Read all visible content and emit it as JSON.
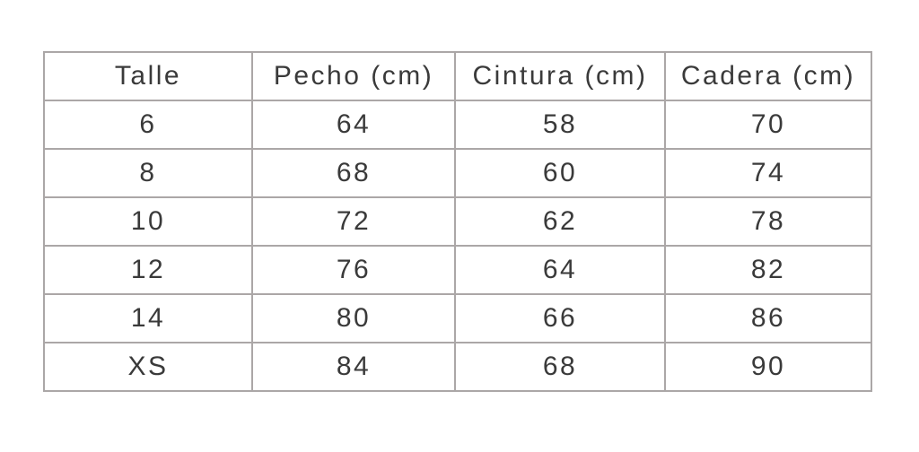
{
  "table": {
    "columns": [
      "Talle",
      "Pecho (cm)",
      "Cintura (cm)",
      "Cadera (cm)"
    ],
    "rows": [
      [
        "6",
        "64",
        "58",
        "70"
      ],
      [
        "8",
        "68",
        "60",
        "74"
      ],
      [
        "10",
        "72",
        "62",
        "78"
      ],
      [
        "12",
        "76",
        "64",
        "82"
      ],
      [
        "14",
        "80",
        "66",
        "86"
      ],
      [
        "XS",
        "84",
        "68",
        "90"
      ]
    ]
  },
  "chart_data": {
    "type": "table",
    "title": "",
    "columns": [
      "Talle",
      "Pecho (cm)",
      "Cintura (cm)",
      "Cadera (cm)"
    ],
    "rows": [
      [
        "6",
        "64",
        "58",
        "70"
      ],
      [
        "8",
        "68",
        "60",
        "74"
      ],
      [
        "10",
        "72",
        "62",
        "78"
      ],
      [
        "12",
        "76",
        "64",
        "82"
      ],
      [
        "14",
        "80",
        "66",
        "86"
      ],
      [
        "XS",
        "84",
        "68",
        "90"
      ]
    ]
  },
  "colors": {
    "background": "#ffffff",
    "border": "#aba7a7",
    "text": "#3a3a3a"
  }
}
